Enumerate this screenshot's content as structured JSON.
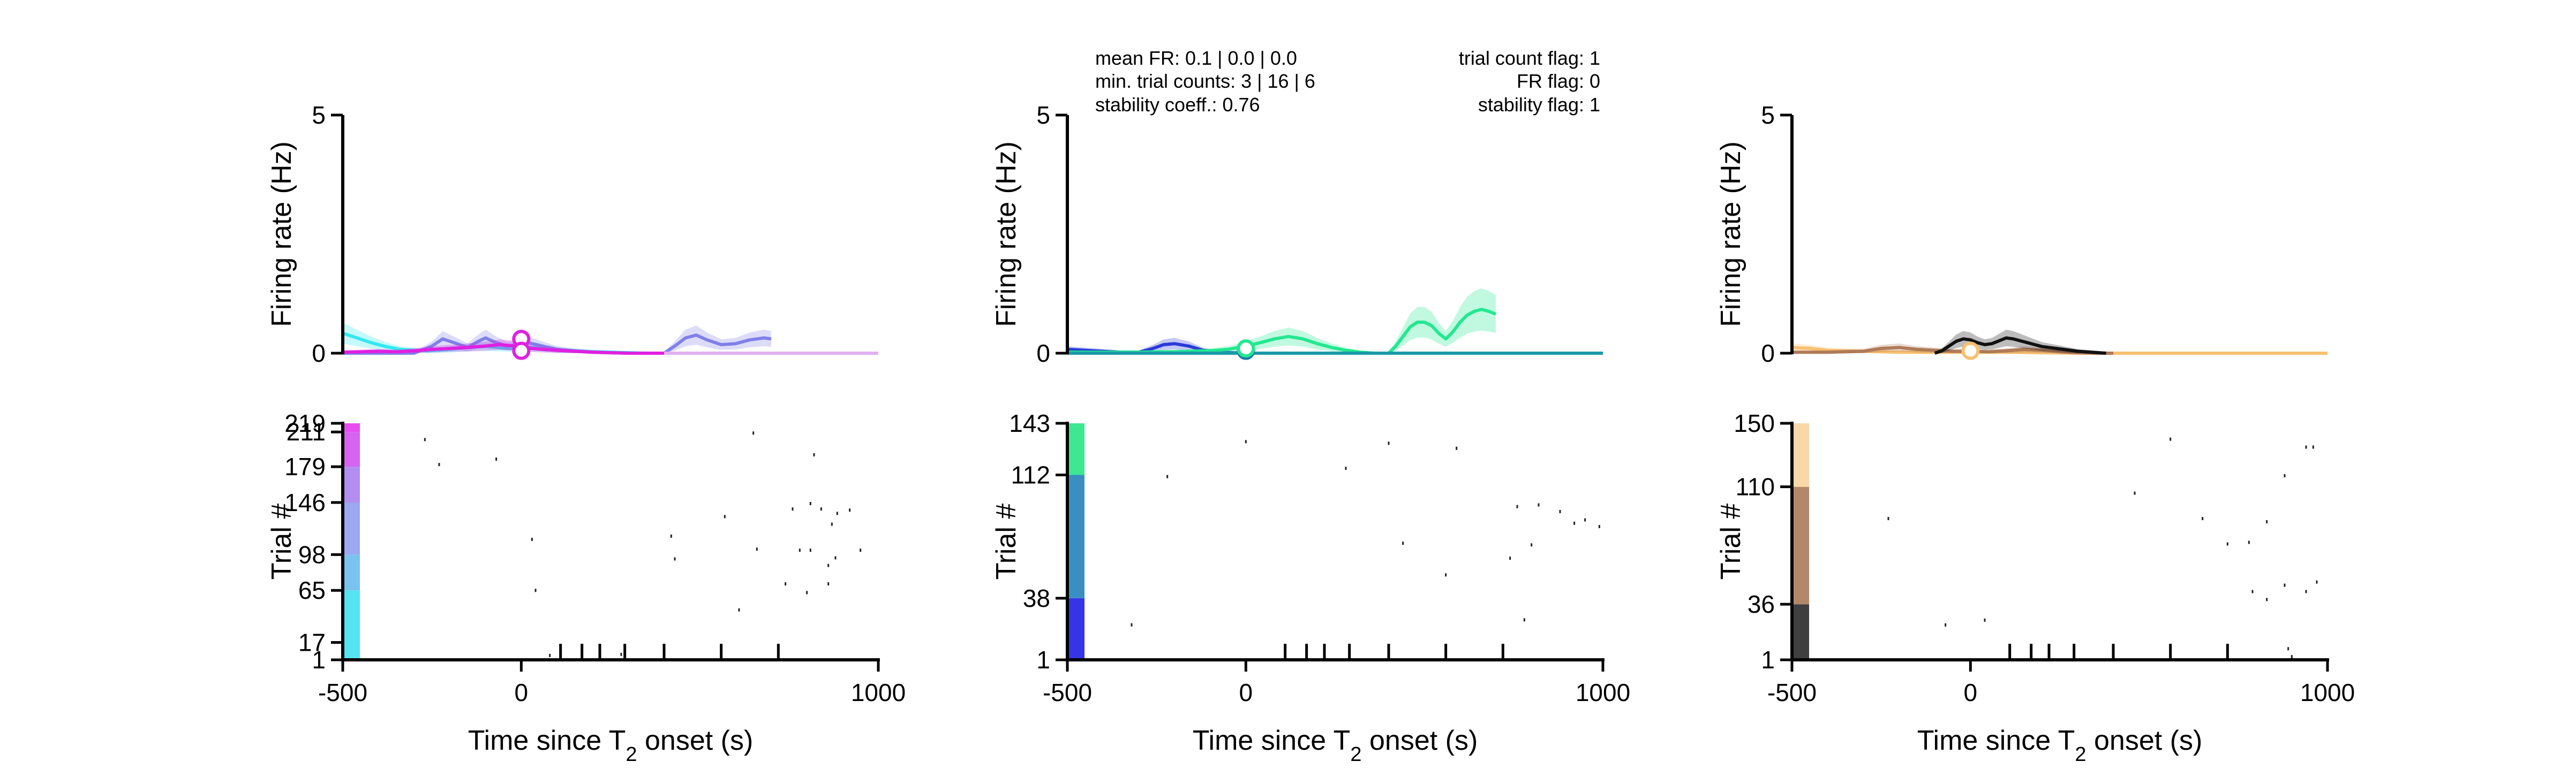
{
  "stats": {
    "left": [
      "mean FR: 0.1 | 0.0 | 0.0",
      "min. trial counts: 3 | 16 | 6",
      "stability coeff.: 0.76"
    ],
    "right": [
      "trial count flag: 1",
      "FR flag: 0",
      "stability flag: 1"
    ]
  },
  "chart_data": [
    {
      "panel": "left",
      "type": "line",
      "title": "",
      "ylabel": "Firing rate (Hz)",
      "ylim": [
        0,
        5
      ],
      "yticks": [
        "0",
        "5"
      ],
      "xlim": [
        -500,
        1000
      ],
      "series": [
        {
          "color": "#33e8f0",
          "x": [
            -500,
            -460,
            -420,
            -380,
            -340,
            -300,
            -260,
            -200,
            -150,
            -100,
            -60,
            -20,
            20,
            60,
            100,
            150,
            200,
            250,
            300,
            350,
            400,
            450,
            500
          ],
          "y": [
            0.42,
            0.32,
            0.22,
            0.14,
            0.08,
            0.06,
            0.05,
            0.08,
            0.12,
            0.14,
            0.12,
            0.1,
            0.12,
            0.1,
            0.07,
            0.05,
            0.03,
            0.02,
            0.01,
            0.0,
            0.0,
            0.0,
            0.0
          ]
        },
        {
          "color": "#8080e8",
          "x": [
            -500,
            -300,
            -250,
            -220,
            -180,
            -150,
            -120,
            -100,
            -70,
            -40,
            -10,
            20,
            60,
            100,
            150,
            200,
            250,
            300,
            350,
            400,
            430,
            460,
            490,
            520,
            560,
            600,
            640,
            680,
            700
          ],
          "y": [
            0.0,
            0.0,
            0.15,
            0.3,
            0.2,
            0.12,
            0.25,
            0.32,
            0.22,
            0.15,
            0.18,
            0.22,
            0.15,
            0.08,
            0.04,
            0.02,
            0.01,
            0.0,
            0.0,
            0.0,
            0.15,
            0.32,
            0.38,
            0.28,
            0.18,
            0.2,
            0.28,
            0.32,
            0.3
          ]
        },
        {
          "color": "#e020e0",
          "x": [
            -500,
            -450,
            -400,
            -350,
            -300,
            -250,
            -200,
            -150,
            -100,
            -60,
            -30,
            0,
            30,
            60,
            100,
            150,
            200,
            250,
            300,
            350,
            400,
            450,
            480
          ],
          "y": [
            0.02,
            0.03,
            0.04,
            0.03,
            0.05,
            0.08,
            0.1,
            0.12,
            0.15,
            0.18,
            0.16,
            0.12,
            0.1,
            0.08,
            0.06,
            0.04,
            0.02,
            0.01,
            0.0,
            0.0,
            0.0,
            0.0,
            0.0
          ]
        },
        {
          "color": "#e0b0f0",
          "x": [
            400,
            1000
          ],
          "y": [
            0.0,
            0.0
          ]
        }
      ],
      "markers": [
        {
          "x": 0,
          "y": 0.3,
          "color": "#e020e0"
        },
        {
          "x": 0,
          "y": 0.05,
          "color": "#e020e0"
        }
      ]
    },
    {
      "panel": "middle",
      "type": "line",
      "title": "",
      "ylabel": "Firing rate (Hz)",
      "ylim": [
        0,
        5
      ],
      "yticks": [
        "0",
        "5"
      ],
      "xlim": [
        -500,
        1000
      ],
      "series": [
        {
          "color": "#2a3ad8",
          "x": [
            -500,
            -450,
            -400,
            -350,
            -300,
            -260,
            -230,
            -200,
            -160,
            -120,
            -80,
            -40,
            0,
            50,
            100,
            200,
            300,
            400,
            500,
            600,
            700
          ],
          "y": [
            0.08,
            0.06,
            0.04,
            0.02,
            0.02,
            0.1,
            0.18,
            0.2,
            0.15,
            0.06,
            0.02,
            0.01,
            0.0,
            0.0,
            0.0,
            0.0,
            0.0,
            0.0,
            0.0,
            0.0,
            0.0
          ]
        },
        {
          "color": "#22e890",
          "x": [
            -500,
            -400,
            -300,
            -200,
            -100,
            -50,
            -20,
            0,
            40,
            80,
            120,
            160,
            200,
            240,
            280,
            320,
            360,
            400,
            420,
            440,
            460,
            480,
            500,
            520,
            540,
            560,
            580,
            600,
            620,
            640,
            660,
            680,
            700
          ],
          "y": [
            0.02,
            0.02,
            0.02,
            0.03,
            0.05,
            0.08,
            0.12,
            0.15,
            0.22,
            0.3,
            0.35,
            0.3,
            0.2,
            0.12,
            0.06,
            0.02,
            0.0,
            0.0,
            0.15,
            0.35,
            0.55,
            0.65,
            0.65,
            0.58,
            0.42,
            0.3,
            0.45,
            0.65,
            0.8,
            0.88,
            0.92,
            0.88,
            0.82
          ]
        },
        {
          "color": "#1a9aa8",
          "x": [
            -500,
            1000
          ],
          "y": [
            0.0,
            0.0
          ]
        }
      ],
      "markers": [
        {
          "x": 0,
          "y": 0.05,
          "color": "#1a7aa8"
        },
        {
          "x": 0,
          "y": 0.1,
          "color": "#22e890"
        }
      ]
    },
    {
      "panel": "right",
      "type": "line",
      "title": "",
      "ylabel": "Firing rate (Hz)",
      "ylim": [
        0,
        5
      ],
      "yticks": [
        "0",
        "5"
      ],
      "xlim": [
        -500,
        1000
      ],
      "series": [
        {
          "color": "#f8c070",
          "x": [
            -500,
            -450,
            -400,
            -300,
            -200,
            -100,
            0,
            100,
            200,
            300,
            400,
            500,
            600,
            700,
            800,
            900,
            1000
          ],
          "y": [
            0.12,
            0.1,
            0.06,
            0.04,
            0.02,
            0.02,
            0.02,
            0.02,
            0.01,
            0.0,
            0.0,
            0.0,
            0.0,
            0.0,
            0.0,
            0.0,
            0.0
          ]
        },
        {
          "color": "#b07a58",
          "x": [
            -500,
            -400,
            -300,
            -250,
            -200,
            -150,
            -100,
            -50,
            0,
            50,
            100,
            150,
            200,
            250,
            300,
            350,
            400
          ],
          "y": [
            0.02,
            0.02,
            0.04,
            0.1,
            0.12,
            0.08,
            0.06,
            0.04,
            0.04,
            0.03,
            0.05,
            0.08,
            0.06,
            0.03,
            0.01,
            0.0,
            0.0
          ]
        },
        {
          "color": "#111111",
          "x": [
            -100,
            -80,
            -60,
            -40,
            -20,
            0,
            20,
            40,
            60,
            80,
            100,
            120,
            140,
            160,
            180,
            200,
            220,
            240,
            260,
            280,
            300,
            320,
            340,
            360,
            380
          ],
          "y": [
            0.0,
            0.05,
            0.15,
            0.25,
            0.3,
            0.28,
            0.22,
            0.18,
            0.2,
            0.26,
            0.32,
            0.3,
            0.26,
            0.22,
            0.18,
            0.14,
            0.12,
            0.1,
            0.08,
            0.06,
            0.04,
            0.03,
            0.02,
            0.01,
            0.0
          ]
        }
      ],
      "markers": [
        {
          "x": 0,
          "y": 0.05,
          "color": "#f8c070"
        }
      ]
    },
    {
      "panel": "left",
      "type": "scatter",
      "title": "",
      "ylabel": "Trial #",
      "xlabel": "Time since T2 onset (s)",
      "xlim": [
        -500,
        1000
      ],
      "xticks": [
        "-500",
        "0",
        "1000"
      ],
      "yticks": [
        "1",
        "17",
        "65",
        "98",
        "146",
        "179",
        "211",
        "219"
      ],
      "ylim": [
        1,
        219
      ],
      "trial_bands": [
        {
          "from": 1,
          "to": 65,
          "color": "#55e4f2"
        },
        {
          "from": 65,
          "to": 98,
          "color": "#79c3ee"
        },
        {
          "from": 98,
          "to": 146,
          "color": "#9ca8f0"
        },
        {
          "from": 146,
          "to": 179,
          "color": "#b38ef0"
        },
        {
          "from": 179,
          "to": 211,
          "color": "#d664f0"
        },
        {
          "from": 211,
          "to": 219,
          "color": "#e84cf0"
        }
      ],
      "spikes": {
        "x": [
          -230,
          -270,
          -70,
          30,
          40,
          280,
          420,
          610,
          650,
          570,
          820,
          810,
          660,
          740,
          860,
          860,
          880,
          840,
          885,
          920,
          950,
          870,
          810,
          760,
          780,
          800,
          430,
          80
        ],
        "y": [
          181,
          204,
          186,
          112,
          65,
          6,
          115,
          47,
          210,
          133,
          190,
          145,
          103,
          71,
          71,
          88,
          95,
          140,
          136,
          139,
          102,
          126,
          102,
          140,
          102,
          63,
          94,
          5
        ]
      },
      "event_ticks": [
        110,
        170,
        220,
        290,
        400,
        560,
        720
      ]
    },
    {
      "panel": "middle",
      "type": "scatter",
      "title": "",
      "ylabel": "Trial #",
      "xlabel": "Time since T2 onset (s)",
      "xlim": [
        -500,
        1000
      ],
      "xticks": [
        "-500",
        "0",
        "1000"
      ],
      "yticks": [
        "1",
        "38",
        "112",
        "143"
      ],
      "ylim": [
        1,
        143
      ],
      "trial_bands": [
        {
          "from": 1,
          "to": 38,
          "color": "#3535e8"
        },
        {
          "from": 38,
          "to": 112,
          "color": "#3a8ec2"
        },
        {
          "from": 112,
          "to": 143,
          "color": "#3ee890"
        }
      ],
      "spikes": {
        "x": [
          -320,
          -220,
          0,
          280,
          400,
          590,
          440,
          560,
          760,
          880,
          920,
          740,
          800,
          820,
          950,
          990,
          780
        ],
        "y": [
          22,
          111,
          132,
          116,
          131,
          128,
          71,
          52,
          93,
          90,
          83,
          62,
          70,
          94,
          85,
          81,
          25
        ]
      },
      "event_ticks": [
        110,
        170,
        220,
        290,
        400,
        560,
        720
      ]
    },
    {
      "panel": "right",
      "type": "scatter",
      "title": "",
      "ylabel": "Trial #",
      "xlabel": "Time since T2 onset (s)",
      "xlim": [
        -500,
        1000
      ],
      "xticks": [
        "-500",
        "0",
        "1000"
      ],
      "yticks": [
        "1",
        "36",
        "110",
        "150"
      ],
      "ylim": [
        1,
        150
      ],
      "trial_bands": [
        {
          "from": 1,
          "to": 36,
          "color": "#3f3f3f"
        },
        {
          "from": 36,
          "to": 110,
          "color": "#b3876a"
        },
        {
          "from": 110,
          "to": 150,
          "color": "#f8d8a8"
        }
      ],
      "spikes": {
        "x": [
          -230,
          -70,
          40,
          560,
          460,
          650,
          720,
          780,
          790,
          830,
          830,
          880,
          960,
          970,
          880,
          940,
          940,
          890,
          900
        ],
        "y": [
          90,
          23,
          26,
          140,
          106,
          90,
          74,
          75,
          44,
          39,
          88,
          117,
          135,
          50,
          48,
          135,
          44,
          8,
          3
        ]
      },
      "event_ticks": [
        110,
        170,
        220,
        290,
        400,
        560,
        720
      ]
    }
  ]
}
